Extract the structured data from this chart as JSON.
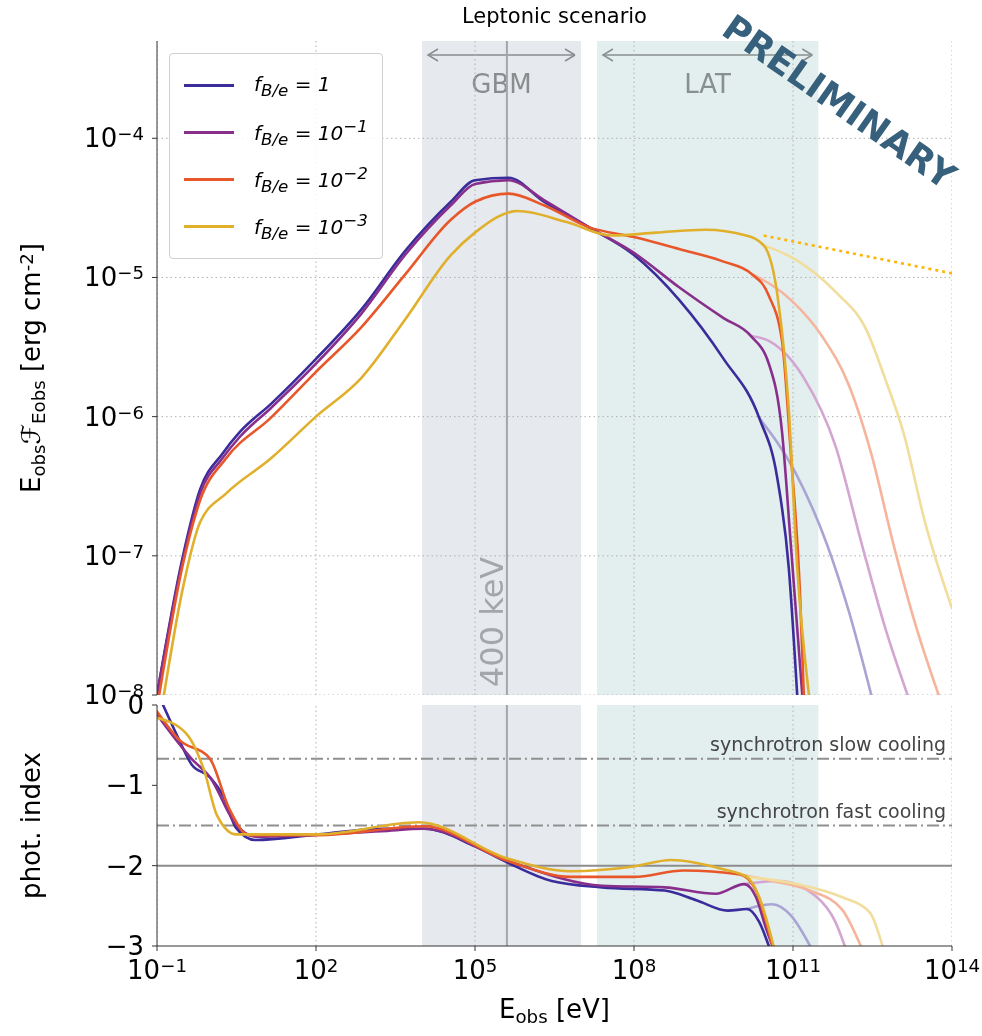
{
  "chart_data": [
    {
      "type": "line",
      "title": "Leptonic scenario",
      "ylabel": "E$_{obs}$ℱ$_{Eobs}$ [erg cm$^{-2}$]",
      "log": "xy",
      "grid": true,
      "legend": "top left",
      "tick_labels": "y",
      "marker": "none",
      "line_style": "solid",
      "xlim": [
        0.1,
        100000000000000.0
      ],
      "xticks": [
        {
          "value": 0.1,
          "label": null
        },
        {
          "value": 100,
          "label": null
        },
        {
          "value": 100000.0,
          "label": null
        },
        {
          "value": 100000000.0,
          "label": null
        },
        {
          "value": 100000000000.0,
          "label": null
        },
        {
          "value": 100000000000000.0,
          "label": null
        }
      ],
      "ylim": [
        1e-08,
        0.0005
      ],
      "yticks": [
        {
          "value": 1e-08,
          "label": "10$^{−8}$"
        },
        {
          "value": 1e-07,
          "label": "10$^{−7}$"
        },
        {
          "value": 1e-06,
          "label": "10$^{−6}$"
        },
        {
          "value": 1e-05,
          "label": "10$^{−5}$"
        },
        {
          "value": 0.0001,
          "label": "10$^{−4}$"
        }
      ],
      "bands": [
        {
          "axis": "x",
          "from": 10000.0,
          "to": 10000000.0,
          "label": "GBM",
          "color": "#e6e9ed"
        },
        {
          "axis": "x",
          "from": 20000000.0,
          "to": 300000000000.0,
          "label": "LAT",
          "color": "#e3eeef"
        }
      ],
      "ref_lines": [
        {
          "axis": "x",
          "value": 400000.0,
          "label": "400 keV",
          "color": "#a3a6aa"
        }
      ],
      "annotations": [
        "PRELIMINARY"
      ],
      "series": [
        {
          "color": "#aaa4d4",
          "x": [
            23000000000.0,
            110000000000.0,
            440000000000.0,
            1150000000000.0,
            3000000000000.0
          ],
          "values": [
            9.8e-07,
            4e-07,
            1.2e-07,
            3.9e-08,
            1e-08
          ]
        },
        {
          "color": "#d3a6d1",
          "x": [
            16000000000.0,
            35000000000.0,
            160000000000.0,
            630000000000.0,
            2000000000000.0,
            5400000000000.0,
            14500000000000.0
          ],
          "values": [
            3.8e-06,
            3.5e-06,
            1.9e-06,
            6.2e-07,
            1.2e-07,
            3.1e-08,
            1e-08
          ]
        },
        {
          "color": "#f6b49c",
          "x": [
            16000000000.0,
            91000000000.0,
            350000000000.0,
            1150000000000.0,
            3000000000000.0,
            7900000000000.0,
            21000000000000.0,
            56000000000000.0
          ],
          "values": [
            1.07e-05,
            6.9e-06,
            3.8e-06,
            1.66e-06,
            5.4e-07,
            1.2e-07,
            3.1e-08,
            1e-08
          ]
        },
        {
          "color": "#f1dd9c",
          "x": [
            28000000000.0,
            110000000000.0,
            630000000000.0,
            2500000000000.0,
            5400000000000.0,
            12000000000000.0,
            31000000000000.0,
            100000000000000.0
          ],
          "values": [
            1.7e-05,
            1.35e-05,
            7.9e-06,
            4.1e-06,
            1.9e-06,
            7.8e-07,
            1.74e-07,
            4.2e-08
          ]
        },
        {
          "name": "f$_{B/e}$ = 1",
          "color": "#3a2c9a",
          "x": [
            0.1,
            0.3,
            0.65,
            1.7,
            3.7,
            14,
            100,
            720,
            5000,
            35000,
            100000.0,
            430000.0,
            2000000.0,
            14000000.0,
            100000000.0,
            710000000.0,
            4900000000.0,
            23000000000.0,
            50000000000.0,
            83000000000.0,
            120000000000.0
          ],
          "values": [
            1e-08,
            9.5e-08,
            3e-07,
            5.4e-07,
            7.8e-07,
            1.23e-06,
            2.6e-06,
            5.9e-06,
            1.58e-05,
            3.5e-05,
            5e-05,
            5.2e-05,
            3.5e-05,
            2.3e-05,
            1.45e-05,
            6.9e-06,
            2.6e-06,
            9.8e-07,
            3.7e-07,
            8.3e-08,
            1e-08
          ]
        },
        {
          "name": "f$_{B/e}$ = 10$^{−1}$",
          "color": "#882f8c",
          "x": [
            0.1,
            0.3,
            0.65,
            1.7,
            3.7,
            14,
            100,
            720,
            5000,
            35000,
            100000.0,
            430000.0,
            2000000.0,
            14000000.0,
            100000000.0,
            710000000.0,
            4900000000.0,
            16000000000.0,
            35000000000.0,
            62000000000.0,
            91000000000.0,
            150000000000.0
          ],
          "values": [
            1e-08,
            8.9e-08,
            2.8e-07,
            5e-07,
            7.2e-07,
            1.15e-06,
            2.4e-06,
            5.5e-06,
            1.48e-05,
            3.3e-05,
            4.7e-05,
            5e-05,
            3.6e-05,
            2.3e-05,
            1.5e-05,
            8.5e-06,
            5.1e-06,
            3.8e-06,
            2.4e-06,
            7.8e-07,
            1.2e-07,
            1e-08
          ]
        },
        {
          "name": "f$_{B/e}$ = 10$^{−2}$",
          "color": "#e8572a",
          "x": [
            0.11,
            0.3,
            0.65,
            2.0,
            14,
            100,
            720,
            5000,
            35000,
            100000.0,
            430000.0,
            2000000.0,
            14000000.0,
            100000000.0,
            710000000.0,
            4900000000.0,
            16000000000.0,
            35000000000.0,
            62000000000.0,
            91000000000.0,
            135000000000.0,
            160000000000.0
          ],
          "values": [
            1e-08,
            8.3e-08,
            2.5e-07,
            5e-07,
            9.8e-07,
            2.1e-06,
            4.4e-06,
            1.07e-05,
            2.6e-05,
            3.5e-05,
            4e-05,
            3.3e-05,
            2.3e-05,
            1.95e-05,
            1.6e-05,
            1.3e-05,
            1.07e-05,
            7.4e-06,
            3.5e-06,
            5.4e-07,
            5.6e-08,
            1e-08
          ]
        },
        {
          "name": "f$_{B/e}$ = 10$^{−3}$",
          "color": "#e0b02c",
          "x": [
            0.135,
            0.3,
            0.65,
            2.0,
            14,
            100,
            720,
            5000,
            35000,
            100000.0,
            630000.0,
            5400000.0,
            38000000.0,
            260000000.0,
            2200000000.0,
            13000000000.0,
            28000000000.0,
            51000000000.0,
            83000000000.0,
            120000000000.0,
            200000000000.0
          ],
          "values": [
            1e-08,
            5.6e-08,
            1.74e-07,
            2.8e-07,
            5e-07,
            1e-06,
            1.9e-06,
            5.1e-06,
            1.45e-05,
            2.1e-05,
            3e-05,
            2.5e-05,
            2e-05,
            2.1e-05,
            2.2e-05,
            2e-05,
            1.7e-05,
            7.4e-06,
            1.15e-06,
            8.3e-08,
            1e-08
          ]
        },
        {
          "color": "#ffb400",
          "line_style": "dotted",
          "x": [
            28000000000.0,
            100000000000000.0
          ],
          "values": [
            2e-05,
            1.07e-05
          ]
        }
      ]
    },
    {
      "type": "line",
      "xlabel": "E$_{obs}$ [eV]",
      "ylabel": "phot. index",
      "log": "x",
      "grid": "x",
      "marker": "none",
      "line_style": "solid",
      "xlim": [
        0.1,
        100000000000000.0
      ],
      "xticks": [
        {
          "value": 0.1,
          "label": "10$^{−1}$"
        },
        {
          "value": 100,
          "label": "10$^{2}$"
        },
        {
          "value": 100000.0,
          "label": "10$^{5}$"
        },
        {
          "value": 100000000.0,
          "label": "10$^{8}$"
        },
        {
          "value": 100000000000.0,
          "label": "10$^{11}$"
        },
        {
          "value": 100000000000000.0,
          "label": "10$^{14}$"
        }
      ],
      "ylim": [
        -3,
        0
      ],
      "yticks": [
        {
          "value": -3,
          "label": "−3"
        },
        {
          "value": -2,
          "label": "−2"
        },
        {
          "value": -1,
          "label": "−1"
        },
        0
      ],
      "bands": [
        {
          "axis": "x",
          "from": 10000.0,
          "to": 10000000.0,
          "color": "#e6e9ed"
        },
        {
          "axis": "x",
          "from": 20000000.0,
          "to": 300000000000.0,
          "color": "#e3eeef"
        }
      ],
      "ref_lines": [
        {
          "axis": "x",
          "value": 400000.0,
          "color": "#a3a6aa"
        },
        {
          "axis": "y",
          "value": -0.67,
          "label": "synchrotron slow cooling",
          "color": "#909090",
          "line_style": "dashed"
        },
        {
          "axis": "y",
          "value": -1.5,
          "label": "synchrotron fast cooling",
          "color": "#909090",
          "line_style": "dashed"
        },
        {
          "axis": "y",
          "value": -2,
          "color": "#8c8c8c",
          "line_style": "solid"
        }
      ],
      "series": [
        {
          "color": "#aaa4d4",
          "x": [
            13500000000.0,
            41000000000.0,
            91000000000.0,
            210000000000.0
          ],
          "values": [
            -2.54,
            -2.48,
            -2.62,
            -3
          ]
        },
        {
          "color": "#d3a6d1",
          "x": [
            12000000000.0,
            54000000000.0,
            280000000000.0,
            630000000000.0,
            950000000000.0
          ],
          "values": [
            -2.23,
            -2.19,
            -2.39,
            -2.7,
            -3
          ]
        },
        {
          "color": "#f6b49c",
          "x": [
            10000000000.0,
            41000000000.0,
            210000000000.0,
            830000000000.0,
            1900000000000.0
          ],
          "values": [
            -2.11,
            -2.19,
            -2.31,
            -2.54,
            -3
          ]
        },
        {
          "color": "#f1dd9c",
          "x": [
            13500000000.0,
            120000000000.0,
            830000000000.0,
            2800000000000.0,
            4900000000000.0
          ],
          "values": [
            -2.14,
            -2.23,
            -2.39,
            -2.58,
            -3
          ]
        },
        {
          "color": "#3a2c9a",
          "x": [
            0.13,
            0.26,
            0.45,
            1.0,
            1.8,
            3.1,
            7.1,
            110,
            1700,
            11000,
            100000.0,
            410000.0,
            2800000.0,
            25000000.0,
            380000000.0,
            1500000000.0,
            5900000000.0,
            13500000000.0,
            23000000000.0,
            35000000000.0
          ],
          "values": [
            0,
            -0.43,
            -0.74,
            -0.9,
            -1.14,
            -1.53,
            -1.68,
            -1.61,
            -1.54,
            -1.54,
            -1.76,
            -1.96,
            -2.19,
            -2.27,
            -2.31,
            -2.43,
            -2.56,
            -2.54,
            -2.7,
            -3
          ]
        },
        {
          "color": "#882f8c",
          "x": [
            0.1,
            0.45,
            1.0,
            3.1,
            7.1,
            1700,
            11000,
            410000.0,
            25000000.0,
            380000000.0,
            3500000000.0,
            12000000000.0,
            20000000000.0,
            31000000000.0,
            41000000000.0
          ],
          "values": [
            -0.12,
            -0.67,
            -0.9,
            -1.49,
            -1.64,
            -1.57,
            -1.54,
            -1.94,
            -2.25,
            -2.27,
            -2.35,
            -2.23,
            -2.39,
            -2.78,
            -3
          ]
        },
        {
          "color": "#e8572a",
          "x": [
            0.1,
            0.26,
            1.0,
            2.3,
            5.4,
            110,
            11000,
            410000.0,
            6300000.0,
            98000000.0,
            870000000.0,
            10000000000.0,
            20000000000.0,
            41000000000.0
          ],
          "values": [
            -0.08,
            -0.43,
            -0.67,
            -1.29,
            -1.62,
            -1.62,
            -1.51,
            -1.94,
            -2.14,
            -2.14,
            -2.06,
            -2.11,
            -2.31,
            -3
          ]
        },
        {
          "color": "#e0b02c",
          "x": [
            0.1,
            0.35,
            0.78,
            1.35,
            3.1,
            110,
            8700,
            410000.0,
            6300000.0,
            98000000.0,
            500000000.0,
            4500000000.0,
            13500000000.0,
            23000000000.0,
            43000000000.0
          ],
          "values": [
            -0.16,
            -0.35,
            -0.82,
            -1.37,
            -1.61,
            -1.61,
            -1.46,
            -1.91,
            -2.07,
            -2.01,
            -1.93,
            -2.04,
            -2.14,
            -2.39,
            -3
          ]
        }
      ]
    }
  ]
}
